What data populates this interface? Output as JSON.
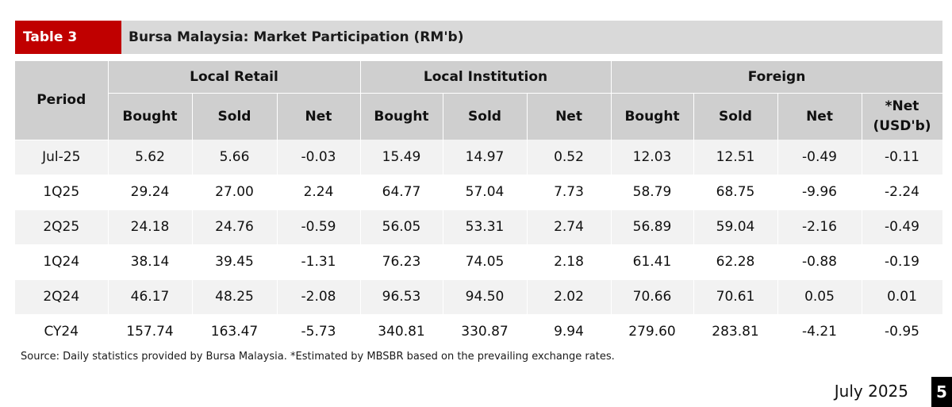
{
  "header": {
    "table_label": "Table 3",
    "title": "Bursa Malaysia: Market Participation (RM'b)"
  },
  "table": {
    "period_header": "Period",
    "groups": [
      "Local Retail",
      "Local Institution",
      "Foreign"
    ],
    "subheaders": [
      "Bought",
      "Sold",
      "Net",
      "Bought",
      "Sold",
      "Net",
      "Bought",
      "Sold",
      "Net",
      "*Net",
      "(USD'b)"
    ],
    "rows": [
      [
        "Jul-25",
        "5.62",
        "5.66",
        "-0.03",
        "15.49",
        "14.97",
        "0.52",
        "12.03",
        "12.51",
        "-0.49",
        "-0.11"
      ],
      [
        "1Q25",
        "29.24",
        "27.00",
        "2.24",
        "64.77",
        "57.04",
        "7.73",
        "58.79",
        "68.75",
        "-9.96",
        "-2.24"
      ],
      [
        "2Q25",
        "24.18",
        "24.76",
        "-0.59",
        "56.05",
        "53.31",
        "2.74",
        "56.89",
        "59.04",
        "-2.16",
        "-0.49"
      ],
      [
        "1Q24",
        "38.14",
        "39.45",
        "-1.31",
        "76.23",
        "74.05",
        "2.18",
        "61.41",
        "62.28",
        "-0.88",
        "-0.19"
      ],
      [
        "2Q24",
        "46.17",
        "48.25",
        "-2.08",
        "96.53",
        "94.50",
        "2.02",
        "70.66",
        "70.61",
        "0.05",
        "0.01"
      ],
      [
        "CY24",
        "157.74",
        "163.47",
        "-5.73",
        "340.81",
        "330.87",
        "9.94",
        "279.60",
        "283.81",
        "-4.21",
        "-0.95"
      ]
    ]
  },
  "footer": {
    "source": "Source: Daily statistics provided by Bursa Malaysia. *Estimated by MBSBR based on the prevailing exchange rates.",
    "date": "July 2025",
    "page_number": "5"
  }
}
